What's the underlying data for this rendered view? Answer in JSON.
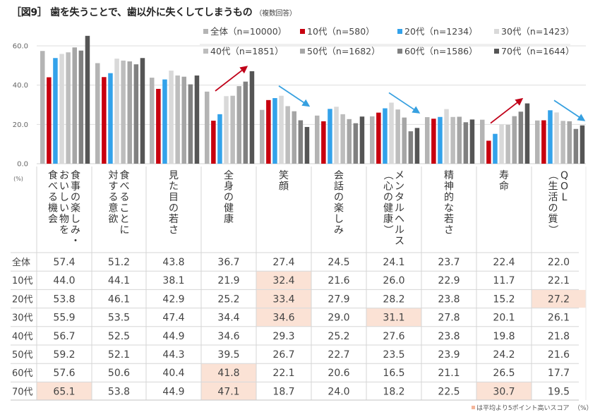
{
  "title": {
    "main": "［図9］ 歯を失うことで、歯以外に失くしてしまうもの",
    "sub": "（複数回答）"
  },
  "colors": {
    "all": "#b4b4b4",
    "10s": "#c8000f",
    "20s": "#33a2ea",
    "30s": "#d9d9d9",
    "40s": "#bdbdbd",
    "50s": "#a6a6a6",
    "60s": "#808080",
    "70s": "#555555",
    "highlight": "#fbe2d5",
    "arrow_up": "#c00018",
    "arrow_down": "#36a0e0"
  },
  "chart_data": {
    "type": "bar",
    "title": "歯を失うことで、歯以外に失くしてしまうもの",
    "xlabel": "",
    "ylabel": "(%)",
    "ylim": [
      0,
      60
    ],
    "yticks": [
      "0.0",
      "20.0",
      "40.0",
      "60.0"
    ],
    "grid": true,
    "legend_position": "top-right",
    "categories": [
      "食事の楽しみ・おいしい物を食べる機会",
      "食べることに対する意欲",
      "見た目の若さ",
      "全身の健康",
      "笑顔",
      "会話の楽しみ",
      "メンタルヘルス（心の健康）",
      "精神的な若さ",
      "寿命",
      "QOL（生活の質）"
    ],
    "category_lines": [
      [
        "食事の楽しみ・",
        "おいしい物を",
        "食べる機会"
      ],
      [
        "食べることに",
        "対する意欲"
      ],
      [
        "見た目の若さ"
      ],
      [
        "全身の健康"
      ],
      [
        "笑顔"
      ],
      [
        "会話の楽しみ"
      ],
      [
        "メンタルヘルス",
        "（心の健康）"
      ],
      [
        "精神的な若さ"
      ],
      [
        "寿命"
      ],
      [
        "QOL",
        "（生活の質）"
      ]
    ],
    "series": [
      {
        "key": "all",
        "name": "全体",
        "legend": "全体（n=10000）",
        "values": [
          57.4,
          51.2,
          43.8,
          36.7,
          27.4,
          24.5,
          24.1,
          23.7,
          22.4,
          22.0
        ]
      },
      {
        "key": "10s",
        "name": "10代",
        "legend": "10代（n=580）",
        "values": [
          44.0,
          44.1,
          38.1,
          21.9,
          32.4,
          21.6,
          26.0,
          22.9,
          11.7,
          22.1
        ]
      },
      {
        "key": "20s",
        "name": "20代",
        "legend": "20代（n=1234）",
        "values": [
          53.8,
          46.1,
          42.9,
          25.2,
          33.4,
          27.9,
          28.2,
          23.8,
          15.2,
          27.2
        ]
      },
      {
        "key": "30s",
        "name": "30代",
        "legend": "30代（n=1423）",
        "values": [
          55.9,
          53.5,
          47.4,
          34.4,
          34.6,
          29.0,
          31.1,
          27.8,
          20.1,
          26.1
        ]
      },
      {
        "key": "40s",
        "name": "40代",
        "legend": "40代（n=1851）",
        "values": [
          56.7,
          52.5,
          44.9,
          34.6,
          29.3,
          25.2,
          27.6,
          23.8,
          19.8,
          21.8
        ]
      },
      {
        "key": "50s",
        "name": "50代",
        "legend": "50代（n=1682）",
        "values": [
          59.2,
          52.1,
          44.3,
          39.5,
          26.7,
          22.7,
          23.5,
          23.9,
          24.2,
          21.6
        ]
      },
      {
        "key": "60s",
        "name": "60代",
        "legend": "60代（n=1586）",
        "values": [
          57.6,
          50.6,
          40.4,
          41.8,
          22.1,
          20.6,
          16.5,
          21.1,
          26.5,
          17.7
        ]
      },
      {
        "key": "70s",
        "name": "70代",
        "legend": "70代（n=1644）",
        "values": [
          65.1,
          53.8,
          44.9,
          47.1,
          18.7,
          24.0,
          18.2,
          22.5,
          30.7,
          19.5
        ]
      }
    ],
    "highlighted_cells": [
      {
        "series": "10代",
        "category": 4
      },
      {
        "series": "20代",
        "category": 4
      },
      {
        "series": "30代",
        "category": 4
      },
      {
        "series": "20代",
        "category": 9
      },
      {
        "series": "30代",
        "category": 6
      },
      {
        "series": "60代",
        "category": 3
      },
      {
        "series": "70代",
        "category": 0
      },
      {
        "series": "70代",
        "category": 3
      },
      {
        "series": "70代",
        "category": 8
      }
    ],
    "annotations": [
      {
        "type": "arrow",
        "direction": "up",
        "category": 3,
        "color": "arrow_up"
      },
      {
        "type": "arrow",
        "direction": "down",
        "category": 4,
        "color": "arrow_down"
      },
      {
        "type": "arrow",
        "direction": "down",
        "category": 6,
        "color": "arrow_down"
      },
      {
        "type": "arrow",
        "direction": "up",
        "category": 8,
        "color": "arrow_up"
      },
      {
        "type": "arrow",
        "direction": "down",
        "category": 9,
        "color": "arrow_down"
      }
    ],
    "unit_label": "(%)",
    "footnote": "は平均より5ポイント高いスコア",
    "footnote_unit": "（%）"
  }
}
